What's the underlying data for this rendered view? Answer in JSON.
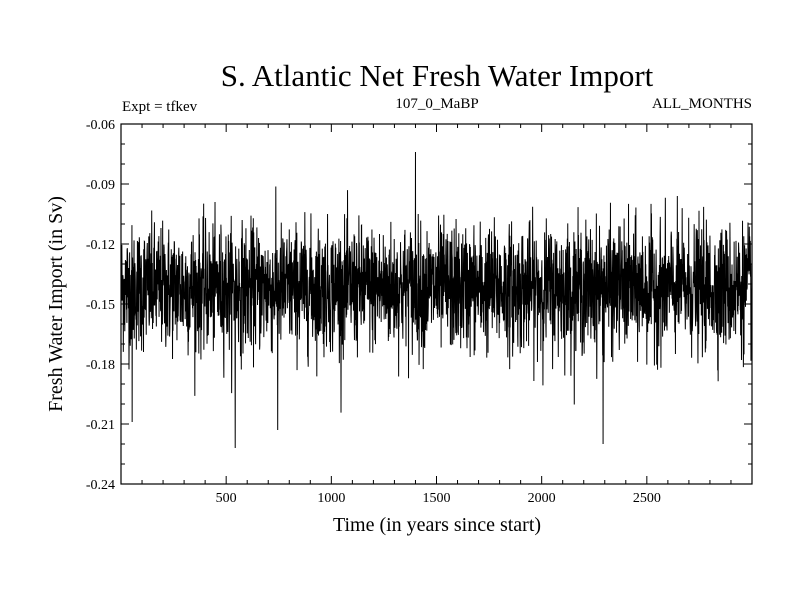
{
  "chart_data": {
    "type": "line",
    "title": "S. Atlantic Net Fresh Water Import",
    "subtitle_left": "Expt = tfkev",
    "subtitle_center": "107_0_MaBP",
    "subtitle_right": "ALL_MONTHS",
    "xlabel": "Time (in years since start)",
    "ylabel": "Fresh Water Import (in Sv)",
    "xlim": [
      0,
      3000
    ],
    "ylim": [
      -0.24,
      -0.06
    ],
    "xticks": [
      500,
      1000,
      1500,
      2000,
      2500
    ],
    "xtick_labels": [
      "500",
      "1000",
      "1500",
      "2000",
      "2500"
    ],
    "yticks": [
      -0.06,
      -0.09,
      -0.12,
      -0.15,
      -0.18,
      -0.21,
      -0.24
    ],
    "ytick_labels": [
      "-0.06",
      "-0.09",
      "-0.12",
      "-0.15",
      "-0.18",
      "-0.21",
      "-0.24"
    ],
    "grid": false,
    "line_color": "#000000",
    "series": [
      {
        "x_start": 1,
        "x_step": 1,
        "count": 3000,
        "mean": -0.142,
        "typical_spread": 0.025,
        "values_min": -0.222,
        "values_max": -0.074,
        "notable_points": [
          [
            543,
            -0.222
          ],
          [
            1400,
            -0.074
          ],
          [
            2292,
            -0.22
          ],
          [
            53,
            -0.209
          ],
          [
            745,
            -0.213
          ]
        ]
      }
    ]
  }
}
